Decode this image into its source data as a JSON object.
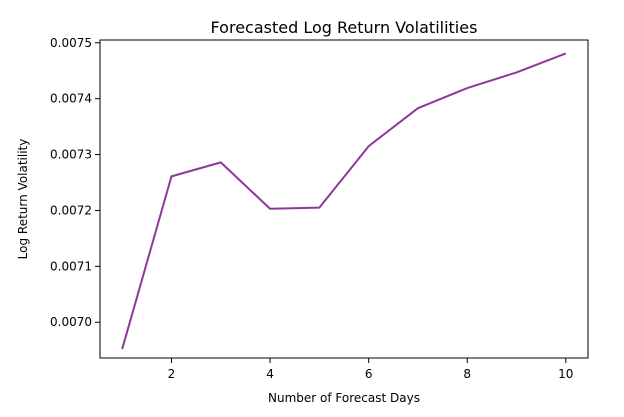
{
  "chart_data": {
    "type": "line",
    "title": "Forecasted Log Return Volatilities",
    "xlabel": "Number of Forecast Days",
    "ylabel": "Log Return Volatility",
    "x": [
      1,
      2,
      3,
      4,
      5,
      6,
      7,
      8,
      9,
      10
    ],
    "series": [
      {
        "values": [
          0.006952,
          0.007261,
          0.007286,
          0.007203,
          0.007205,
          0.007315,
          0.007383,
          0.007419,
          0.007447,
          0.007481
        ],
        "color": "#8b3a96"
      }
    ],
    "xlim": [
      0.55,
      10.45
    ],
    "ylim": [
      0.006936,
      0.007505
    ],
    "xticks": [
      2,
      4,
      6,
      8,
      10
    ],
    "xtick_labels": [
      "2",
      "4",
      "6",
      "8",
      "10"
    ],
    "yticks": [
      0.007,
      0.0071,
      0.0072,
      0.0073,
      0.0074,
      0.0075
    ],
    "ytick_labels": [
      "0.0070",
      "0.0071",
      "0.0072",
      "0.0073",
      "0.0074",
      "0.0075"
    ],
    "grid": false,
    "legend": "none"
  }
}
